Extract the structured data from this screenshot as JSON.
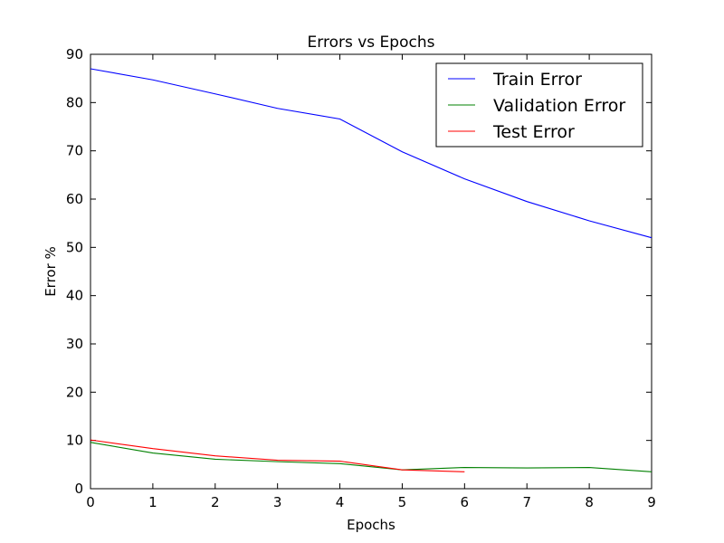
{
  "chart_data": {
    "type": "line",
    "title": "Errors vs Epochs",
    "xlabel": "Epochs",
    "ylabel": "Error %",
    "xlim": [
      0,
      9
    ],
    "ylim": [
      0,
      90
    ],
    "xticks": [
      0,
      1,
      2,
      3,
      4,
      5,
      6,
      7,
      8,
      9
    ],
    "yticks": [
      0,
      10,
      20,
      30,
      40,
      50,
      60,
      70,
      80,
      90
    ],
    "grid": false,
    "legend_position": "top-right",
    "series": [
      {
        "name": "Train Error",
        "color": "#0000ff",
        "x": [
          0,
          1,
          2,
          3,
          4,
          5,
          6,
          7,
          8,
          9
        ],
        "values": [
          87.0,
          84.7,
          81.8,
          78.8,
          76.6,
          69.8,
          64.2,
          59.5,
          55.5,
          52.0
        ]
      },
      {
        "name": "Validation Error",
        "color": "#008000",
        "x": [
          0,
          1,
          2,
          3,
          4,
          5,
          6,
          7,
          8,
          9
        ],
        "values": [
          9.6,
          7.4,
          6.1,
          5.6,
          5.2,
          3.9,
          4.4,
          4.3,
          4.4,
          3.5
        ]
      },
      {
        "name": "Test Error",
        "color": "#ff0000",
        "x": [
          0,
          1,
          2,
          3,
          4,
          5,
          6
        ],
        "values": [
          10.1,
          8.3,
          6.8,
          5.9,
          5.7,
          3.9,
          3.5
        ]
      }
    ]
  }
}
